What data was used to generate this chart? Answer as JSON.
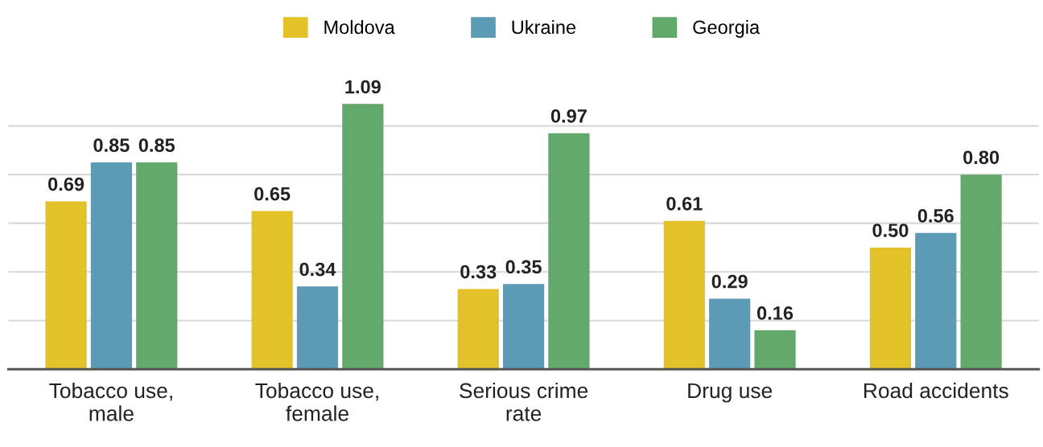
{
  "chart_data": {
    "type": "bar",
    "categories": [
      "Tobacco use,\nmale",
      "Tobacco use,\nfemale",
      "Serious crime\nrate",
      "Drug use",
      "Road accidents"
    ],
    "series": [
      {
        "name": "Moldova",
        "color": "#e3c229",
        "values": [
          0.69,
          0.65,
          0.33,
          0.61,
          0.5
        ],
        "value_labels": [
          "0.69",
          "0.65",
          "0.33",
          "0.61",
          "0.50"
        ]
      },
      {
        "name": "Ukraine",
        "color": "#5b9bb5",
        "values": [
          0.85,
          0.34,
          0.35,
          0.29,
          0.56
        ],
        "value_labels": [
          "0.85",
          "0.34",
          "0.35",
          "0.29",
          "0.56"
        ]
      },
      {
        "name": "Georgia",
        "color": "#63a96b",
        "values": [
          0.85,
          1.09,
          0.97,
          0.16,
          0.8
        ],
        "value_labels": [
          "0.85",
          "1.09",
          "0.97",
          "0.16",
          "0.80"
        ]
      }
    ],
    "yticks": [
      {
        "value": 0.2,
        "label": null
      },
      {
        "value": 0.4,
        "label": null
      },
      {
        "value": 0.6,
        "label": null
      },
      {
        "value": 0.8,
        "label": null
      },
      {
        "value": 1.0,
        "label": null
      }
    ],
    "tick_labels": "x",
    "grid": "y",
    "legend": "top"
  }
}
